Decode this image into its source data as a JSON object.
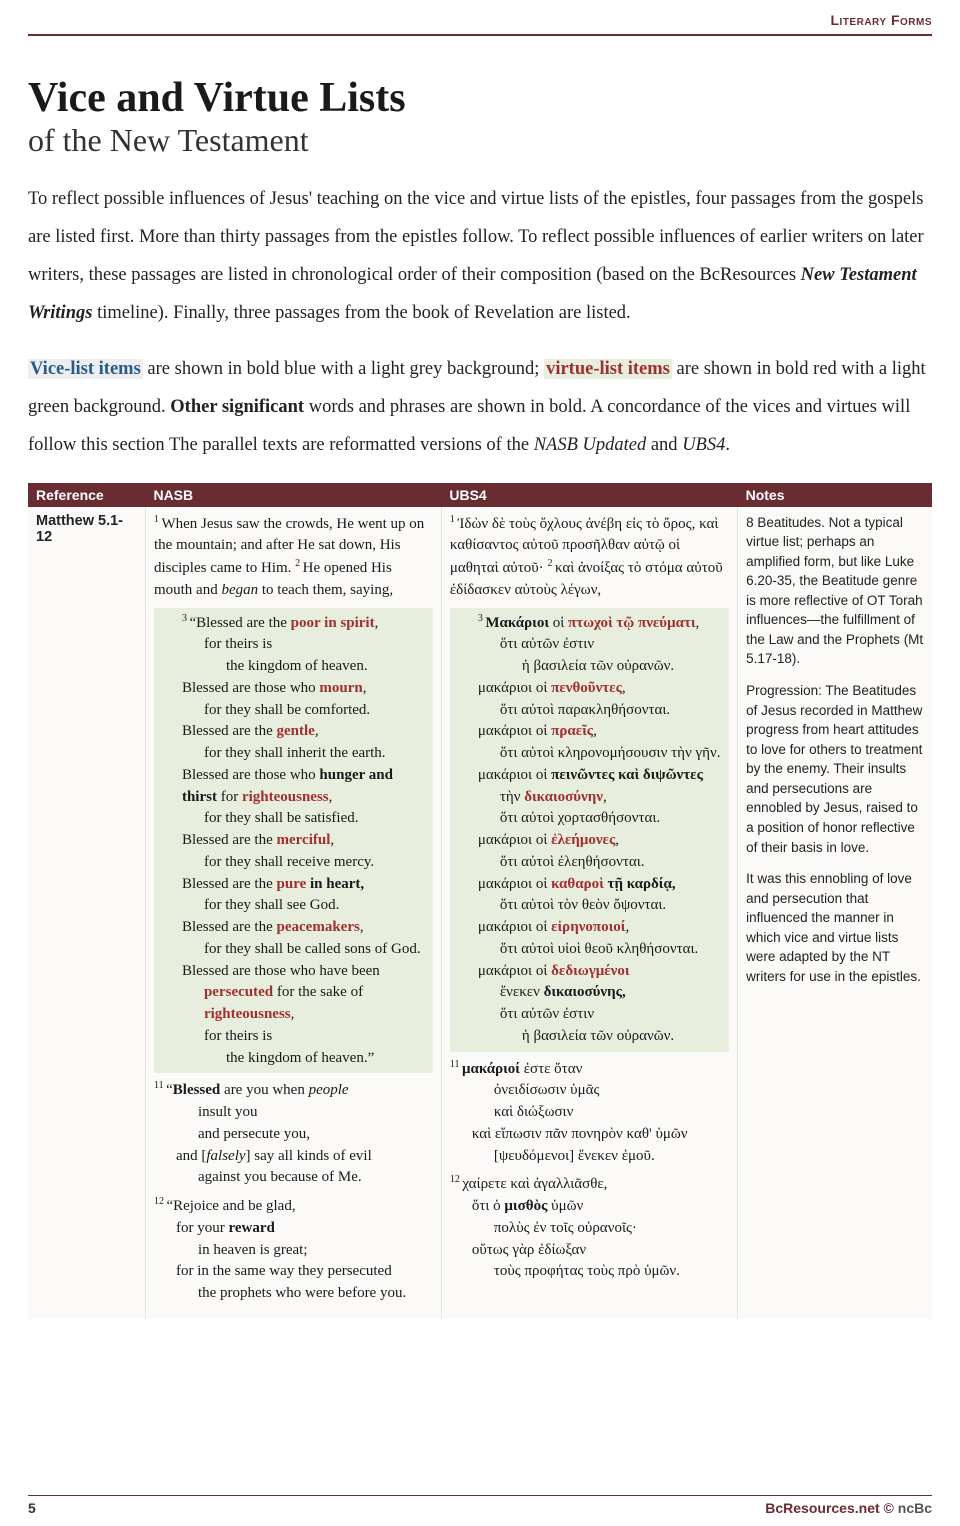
{
  "header": {
    "category": "Literary Forms"
  },
  "title": "Vice and Virtue Lists",
  "subtitle": "of the New Testament",
  "intro": {
    "p1a": "To reflect possible influences of Jesus' teaching on the vice and virtue lists of the epistles, four passages from the gospels are listed first. More than thirty passages from the epistles follow. To reflect possible influences of earlier writers on later writers, these passages are listed in chronological order of their composition (based on the BcResources ",
    "p1_emph": "New Testament Writings",
    "p1b": " timeline). Finally, three passages from the book of Revelation are listed.",
    "vice_label": "Vice-list items",
    "p2a": " are shown in bold blue with a light grey background; ",
    "virtue_label": "virtue-list items",
    "p2b": " are shown in bold red with a light green background. ",
    "p2_bold": "Other significant",
    "p2c": " words and phrases are shown in bold. A concordance of the vices and virtues will follow this section The parallel texts are reformatted versions of the ",
    "p2_it1": "NASB Updated",
    "p2d": " and ",
    "p2_it2": "UBS4",
    "p2e": "."
  },
  "table": {
    "headers": {
      "ref": "Reference",
      "nasb": "NASB",
      "ubs": "UBS4",
      "notes": "Notes"
    },
    "row": {
      "reference": "Matthew 5.1-12",
      "nasb": {
        "v1": "When Jesus saw the crowds, He went up on the mountain; and after He sat down, His disciples came to Him. ",
        "v2": "He opened His mouth and ",
        "began": "began",
        "v2b": " to teach them, saying,",
        "b3a": "“Blessed are the ",
        "b3v": "poor in spirit",
        "b3b": ",",
        "b3c": "for theirs is",
        "b3d": "the kingdom of heaven.",
        "b4a": "Blessed are those who ",
        "b4v": "mourn",
        "b4b": ",",
        "b4c": "for they shall be comforted.",
        "b5a": "Blessed are the ",
        "b5v": "gentle",
        "b5b": ",",
        "b5c": "for they shall inherit the earth.",
        "b6a": "Blessed are those who ",
        "b6v": "hunger and thirst",
        "b6w": " for ",
        "b6x": "righteousness",
        "b6b": ",",
        "b6c": "for they shall be satisfied.",
        "b7a": "Blessed are the ",
        "b7v": "merciful",
        "b7b": ",",
        "b7c": "for they shall receive mercy.",
        "b8a": "Blessed are the ",
        "b8v": "pure",
        "b8w": " in heart,",
        "b8c": "for they shall see God.",
        "b9a": "Blessed are the ",
        "b9v": "peacemakers",
        "b9b": ",",
        "b9c": "for they shall be called sons of God.",
        "b10a": "Blessed are those who have been ",
        "b10v": "persecuted",
        "b10w": " for the sake of ",
        "b10x": "righteousness",
        "b10b": ",",
        "b10c": "for theirs is",
        "b10d": "the kingdom of heaven.”",
        "v11a": "“",
        "v11bold": "Blessed",
        "v11b": " are you when ",
        "v11it": "people",
        "v11c": "insult you",
        "v11d": "and persecute you,",
        "v11e": "and [",
        "v11f": "falsely",
        "v11g": "] say all kinds of evil",
        "v11h": "against you because of Me.",
        "v12a": "“Rejoice and be glad,",
        "v12b": "for your ",
        "v12bold": "reward",
        "v12c": "in heaven is great;",
        "v12d": "for in the same way they persecuted",
        "v12e": "the prophets who were before you."
      },
      "ubs": {
        "v1": "Ἰδὼν δὲ τοὺς ὄχλους ἀνέβη εἰς τὸ ὄρος, καὶ καθίσαντος αὐτοῦ προσῆλθαν αὐτῷ οἱ μαθηταὶ αὐτοῦ· ",
        "v2": "καὶ ἀνοίξας τὸ στόμα αὐτοῦ ἐδίδασκεν αὐτοὺς λέγων,",
        "b3a": "Μακάριοι",
        "b3w": " οἱ ",
        "b3v": "πτωχοὶ τῷ πνεύματι",
        "b3b": ",",
        "b3c": "ὅτι αὐτῶν ἐστιν",
        "b3d": "ἡ βασιλεία τῶν οὐρανῶν.",
        "b4a": "μακάριοι οἱ ",
        "b4v": "πενθοῦντες",
        "b4b": ",",
        "b4c": "ὅτι αὐτοὶ παρακληθήσονται.",
        "b5a": "μακάριοι οἱ ",
        "b5v": "πραεῖς",
        "b5b": ",",
        "b5c": "ὅτι αὐτοὶ κληρονομήσουσιν τὴν γῆν.",
        "b6a": "μακάριοι οἱ ",
        "b6v": "πεινῶντες καὶ διψῶντες",
        "b6w": "τὴν ",
        "b6x": "δικαιοσύνην",
        "b6b": ",",
        "b6c": "ὅτι αὐτοὶ χορτασθήσονται.",
        "b7a": "μακάριοι οἱ ",
        "b7v": "ἐλεήμονες",
        "b7b": ",",
        "b7c": "ὅτι αὐτοὶ ἐλεηθήσονται.",
        "b8a": "μακάριοι οἱ ",
        "b8v": "καθαροὶ",
        "b8w": " τῇ καρδίᾳ,",
        "b8c": "ὅτι αὐτοὶ τὸν θεὸν ὄψονται.",
        "b9a": "μακάριοι οἱ ",
        "b9v": "εἰρηνοποιοί",
        "b9b": ",",
        "b9c": "ὅτι αὐτοὶ υἱοὶ θεοῦ κληθήσονται.",
        "b10a": "μακάριοι οἱ ",
        "b10v": "δεδιωγμένοι",
        "b10w": "ἕνεκεν ",
        "b10x": "δικαιοσύνης,",
        "b10c": "ὅτι αὐτῶν ἐστιν",
        "b10d": "ἡ βασιλεία τῶν οὐρανῶν.",
        "v11a": "μακάριοί",
        "v11b": " ἐστε ὅταν",
        "v11c": "ὀνειδίσωσιν ὑμᾶς",
        "v11d": "καὶ διώξωσιν",
        "v11e": "καὶ εἴπωσιν πᾶν πονηρὸν καθ' ὑμῶν",
        "v11f": "[ψευδόμενοι] ἕνεκεν ἐμοῦ.",
        "v12a": "χαίρετε καὶ ἀγαλλιᾶσθε,",
        "v12b": "ὅτι ὁ ",
        "v12bold": "μισθὸς",
        "v12b2": " ὑμῶν",
        "v12c": "πολὺς ἐν τοῖς οὐρανοῖς·",
        "v12d": "οὕτως γὰρ ἐδίωξαν",
        "v12e": "τοὺς προφήτας τοὺς πρὸ ὑμῶν."
      },
      "notes": {
        "p1": "8 Beatitudes. Not a typical virtue list; perhaps an amplified form, but like Luke 6.20-35, the Beatitude genre is more reflective of OT Torah influences—the fulfillment of the Law and the Prophets (Mt 5.17-18).",
        "p2": "Progression: The Beatitudes of Jesus recorded in Matthew progress from heart attitudes to love for others to treatment by the enemy. Their insults and persecutions are ennobled by Jesus, raised to a position of honor reflective of their basis in love.",
        "p3": "It was this ennobling of love and persecution that influenced the manner in which vice and virtue lists were adapted by the NT writers for use in the epistles."
      }
    }
  },
  "footer": {
    "page": "5",
    "site": "BcResources.net",
    "copy": " © ",
    "org": "ncBc"
  },
  "colors": {
    "maroon": "#6a2c33",
    "virtue_red": "#a03030",
    "vice_blue": "#2a5a8a",
    "virtue_bg": "#e8eedd",
    "vice_bg": "#eceeef"
  }
}
